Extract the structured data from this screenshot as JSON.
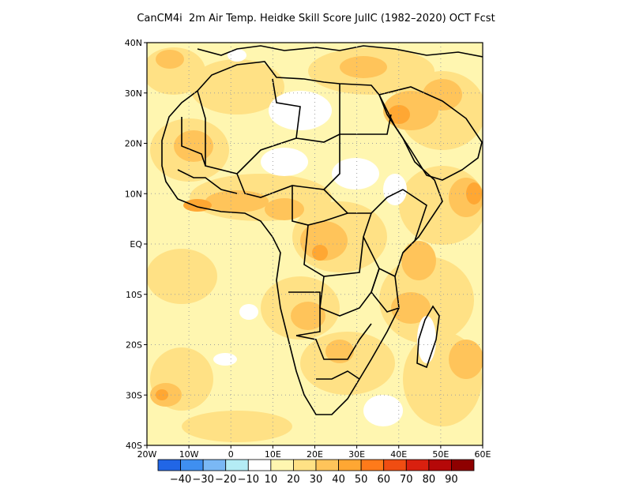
{
  "title": "CanCM4i  2m Air Temp. Heidke Skill Score JulIC (1982–2020) OCT Fcst",
  "map": {
    "lon_range": [
      -20,
      60
    ],
    "lat_range": [
      -40,
      40
    ],
    "x_ticks": [
      {
        "value": -20,
        "label": "20W"
      },
      {
        "value": -10,
        "label": "10W"
      },
      {
        "value": 0,
        "label": "0"
      },
      {
        "value": 10,
        "label": "10E"
      },
      {
        "value": 20,
        "label": "20E"
      },
      {
        "value": 30,
        "label": "30E"
      },
      {
        "value": 40,
        "label": "40E"
      },
      {
        "value": 50,
        "label": "50E"
      },
      {
        "value": 60,
        "label": "60E"
      }
    ],
    "y_ticks": [
      {
        "value": 40,
        "label": "40N"
      },
      {
        "value": 30,
        "label": "30N"
      },
      {
        "value": 20,
        "label": "20N"
      },
      {
        "value": 10,
        "label": "10N"
      },
      {
        "value": 0,
        "label": "EQ"
      },
      {
        "value": -10,
        "label": "10S"
      },
      {
        "value": -20,
        "label": "20S"
      },
      {
        "value": -30,
        "label": "30S"
      },
      {
        "value": -40,
        "label": "40S"
      }
    ],
    "grid": "dotted"
  },
  "colorbar": {
    "colors": [
      "#2166e6",
      "#3f8ff0",
      "#7ab8f5",
      "#b4ecf5",
      "#ffffff",
      "#fff6b0",
      "#ffe185",
      "#ffc45a",
      "#ffa733",
      "#ff7a1a",
      "#f04d12",
      "#d9200f",
      "#b50808",
      "#8e0000"
    ],
    "labels": [
      "−40",
      "−30",
      "−20",
      "−10",
      "10",
      "20",
      "30",
      "40",
      "50",
      "60",
      "70",
      "80",
      "90"
    ]
  }
}
